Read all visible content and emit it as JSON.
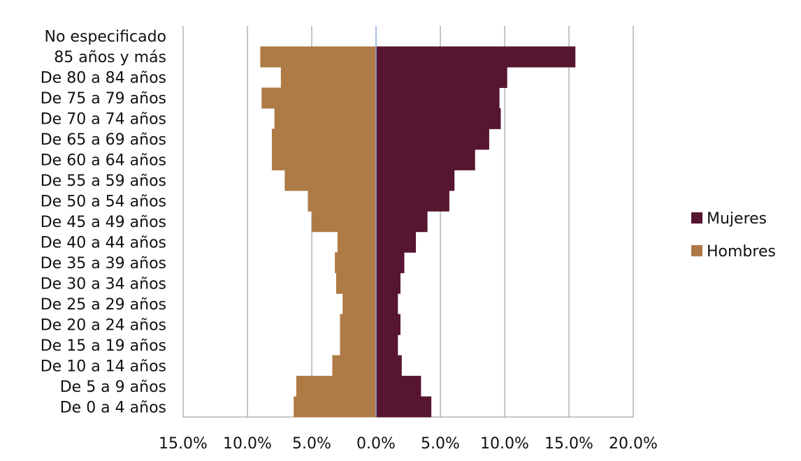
{
  "chart_data": {
    "type": "bar",
    "orientation": "horizontal",
    "stacked_diverging": true,
    "categories": [
      "De 0 a 4 años",
      "De 5 a 9 años",
      "De 10 a 14 años",
      "De 15 a 19 años",
      "De 20 a 24 años",
      "De 25 a 29 años",
      "De 30 a 34 años",
      "De 35 a 39 años",
      "De 40 a 44 años",
      "De 45 a 49 años",
      "De 50 a 54 años",
      "De 55 a 59 años",
      "De 60 a 64 años",
      "De 65 a 69 años",
      "De 70 a 74 años",
      "De 75 a 79 años",
      "De 80 a 84 años",
      "85 años y más",
      "No especificado"
    ],
    "series": [
      {
        "name": "Mujeres",
        "color": "#561530",
        "values": [
          4.3,
          3.5,
          2.0,
          1.7,
          1.9,
          1.7,
          1.9,
          2.2,
          3.1,
          4.0,
          5.7,
          6.1,
          7.7,
          8.8,
          9.7,
          9.6,
          10.2,
          15.5,
          0
        ]
      },
      {
        "name": "Hombres",
        "color": "#AE7A45",
        "values": [
          -6.4,
          -6.2,
          -3.4,
          -2.8,
          -2.8,
          -2.6,
          -3.1,
          -3.2,
          -3.0,
          -5.0,
          -5.3,
          -7.1,
          -8.1,
          -8.1,
          -7.9,
          -8.9,
          -7.4,
          -9.0,
          0
        ]
      }
    ],
    "xlim": [
      -15,
      20
    ],
    "xticks": [
      -15,
      -10,
      -5,
      0,
      5,
      10,
      15,
      20
    ],
    "xtick_labels": [
      "15.0%",
      "10.0%",
      "5.0%",
      "0.0%",
      "5.0%",
      "10.0%",
      "15.0%",
      "20.0%"
    ],
    "grid": "vertical",
    "legend": "right",
    "title": "",
    "xlabel": "",
    "ylabel": ""
  }
}
